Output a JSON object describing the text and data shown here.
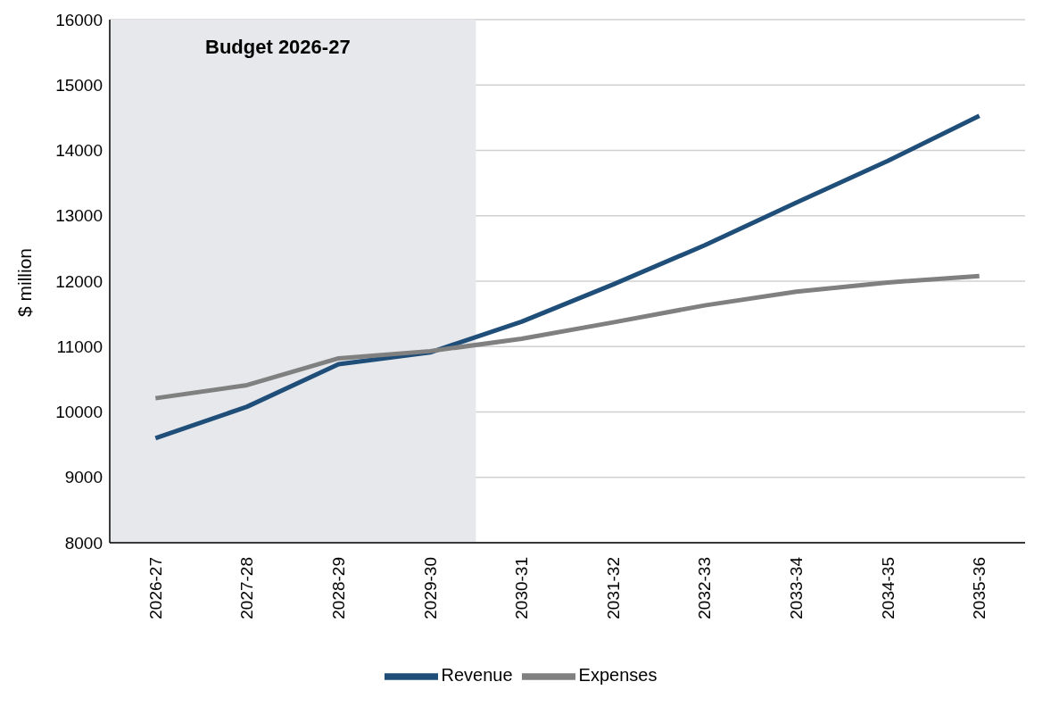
{
  "chart_data": {
    "type": "line",
    "ylabel": "$ million",
    "categories": [
      "2026-27",
      "2027-28",
      "2028-29",
      "2029-30",
      "2030-31",
      "2031-32",
      "2032-33",
      "2033-34",
      "2034-35",
      "2035-36"
    ],
    "series": [
      {
        "name": "Revenue",
        "color": "#1f4e79",
        "values": [
          9600,
          10080,
          10730,
          10910,
          11380,
          11950,
          12550,
          13200,
          13840,
          14530
        ]
      },
      {
        "name": "Expenses",
        "color": "#808080",
        "values": [
          10210,
          10410,
          10820,
          10930,
          11120,
          11370,
          11630,
          11840,
          11980,
          12080
        ]
      }
    ],
    "ylim": [
      8000,
      16000
    ],
    "yticks": [
      8000,
      9000,
      10000,
      11000,
      12000,
      13000,
      14000,
      15000,
      16000
    ],
    "grid": "y",
    "legend": "bottom",
    "marker": "none",
    "line_style": "solid",
    "bands": [
      {
        "axis": "x",
        "from": "2026-27",
        "to": "2029-30",
        "label": "Budget 2026-27",
        "color": "#e7e8ec"
      }
    ]
  }
}
